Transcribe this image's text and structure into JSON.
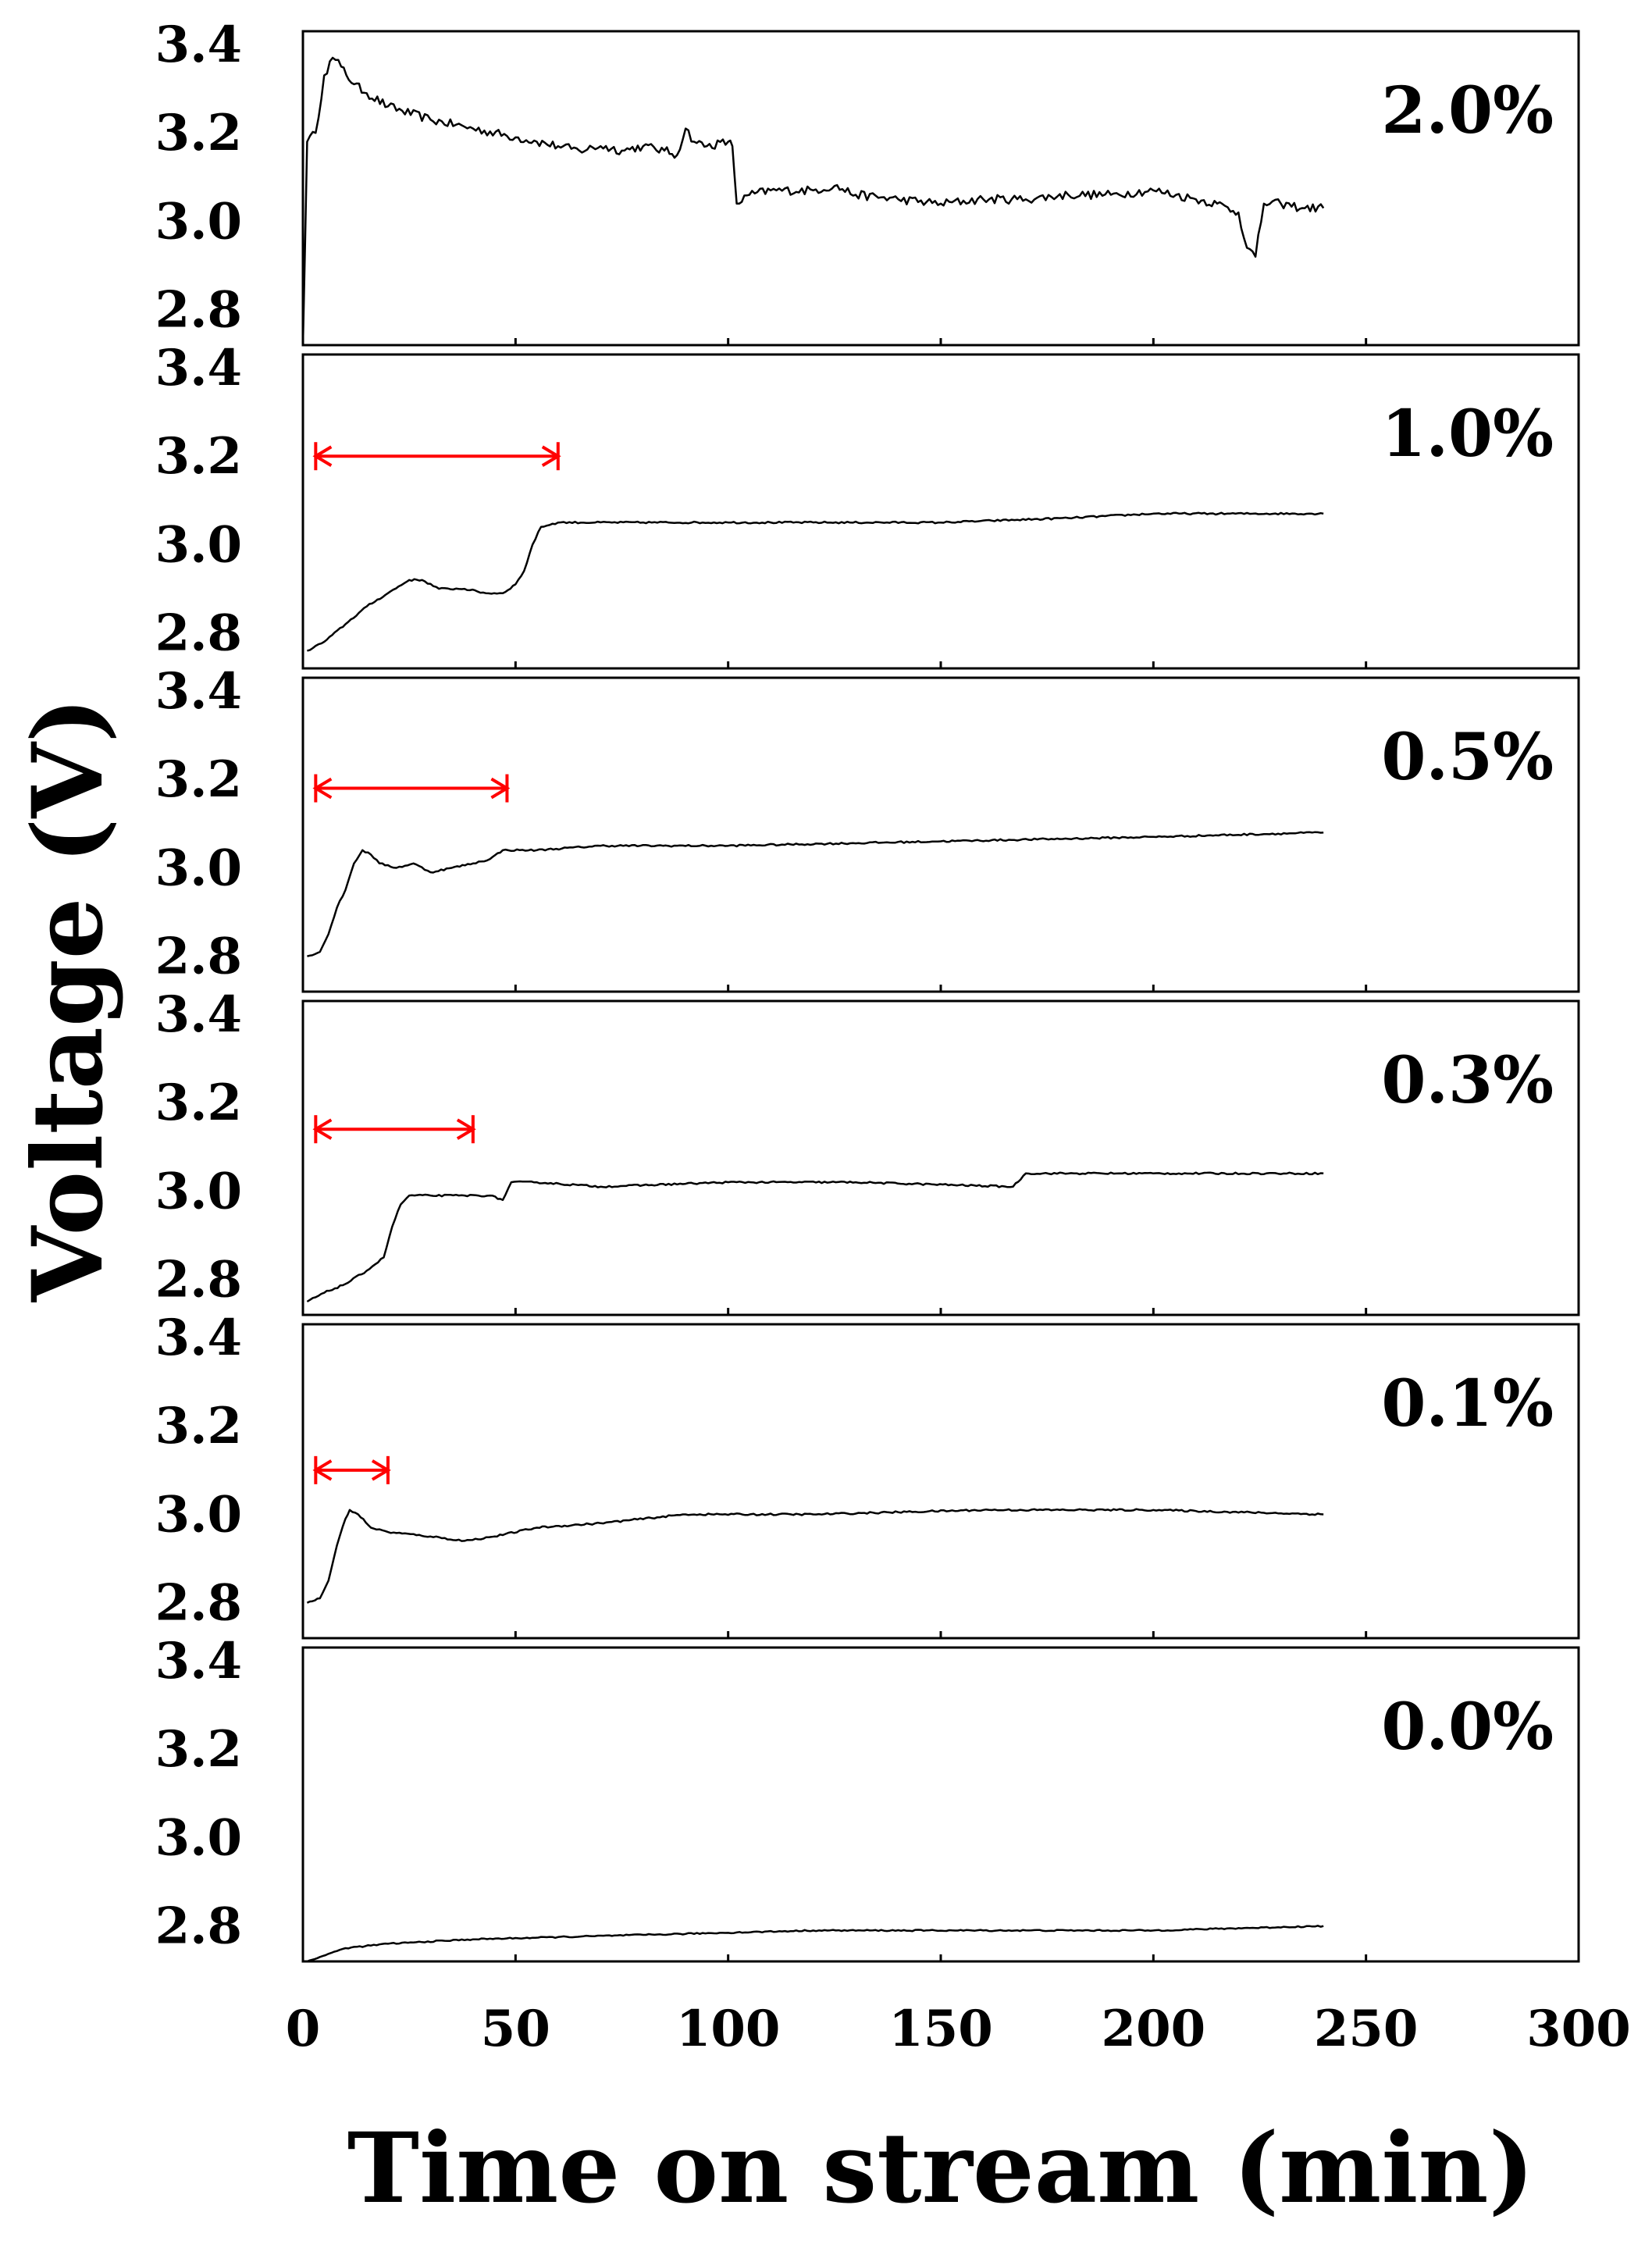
{
  "chart_data": {
    "type": "line",
    "xlabel": "Time on stream (min)",
    "ylabel": "Voltage (V)",
    "xlim": [
      0,
      300
    ],
    "x_ticks": [
      "0",
      "50",
      "100",
      "150",
      "200",
      "250",
      "300"
    ],
    "ylim": [
      2.72,
      3.43
    ],
    "y_ticks": [
      "2.8",
      "3.0",
      "3.2",
      "3.4"
    ],
    "grid": false,
    "colors": {
      "line": "#000000",
      "arrow": "#ff0000"
    },
    "panels": [
      {
        "label": "2.0%",
        "series": [
          {
            "x": 0,
            "y": 2.72
          },
          {
            "x": 1,
            "y": 3.18
          },
          {
            "x": 3,
            "y": 3.2
          },
          {
            "x": 5,
            "y": 3.33
          },
          {
            "x": 7,
            "y": 3.37
          },
          {
            "x": 9,
            "y": 3.35
          },
          {
            "x": 12,
            "y": 3.31
          },
          {
            "x": 15,
            "y": 3.29
          },
          {
            "x": 20,
            "y": 3.26
          },
          {
            "x": 30,
            "y": 3.23
          },
          {
            "x": 40,
            "y": 3.21
          },
          {
            "x": 50,
            "y": 3.19
          },
          {
            "x": 55,
            "y": 3.18
          },
          {
            "x": 60,
            "y": 3.17
          },
          {
            "x": 65,
            "y": 3.16
          },
          {
            "x": 70,
            "y": 3.17
          },
          {
            "x": 75,
            "y": 3.16
          },
          {
            "x": 80,
            "y": 3.17
          },
          {
            "x": 85,
            "y": 3.16
          },
          {
            "x": 88,
            "y": 3.15
          },
          {
            "x": 90,
            "y": 3.21
          },
          {
            "x": 92,
            "y": 3.18
          },
          {
            "x": 95,
            "y": 3.17
          },
          {
            "x": 100,
            "y": 3.18
          },
          {
            "x": 101,
            "y": 3.17
          },
          {
            "x": 102,
            "y": 3.04
          },
          {
            "x": 105,
            "y": 3.06
          },
          {
            "x": 110,
            "y": 3.07
          },
          {
            "x": 120,
            "y": 3.07
          },
          {
            "x": 125,
            "y": 3.08
          },
          {
            "x": 130,
            "y": 3.06
          },
          {
            "x": 140,
            "y": 3.05
          },
          {
            "x": 150,
            "y": 3.04
          },
          {
            "x": 160,
            "y": 3.05
          },
          {
            "x": 170,
            "y": 3.05
          },
          {
            "x": 180,
            "y": 3.06
          },
          {
            "x": 190,
            "y": 3.06
          },
          {
            "x": 200,
            "y": 3.07
          },
          {
            "x": 210,
            "y": 3.05
          },
          {
            "x": 215,
            "y": 3.04
          },
          {
            "x": 220,
            "y": 3.02
          },
          {
            "x": 222,
            "y": 2.94
          },
          {
            "x": 224,
            "y": 2.92
          },
          {
            "x": 226,
            "y": 3.04
          },
          {
            "x": 230,
            "y": 3.04
          },
          {
            "x": 235,
            "y": 3.03
          },
          {
            "x": 240,
            "y": 3.03
          }
        ],
        "noise": 0.02,
        "arrow": null
      },
      {
        "label": "1.0%",
        "series": [
          {
            "x": 1,
            "y": 2.76
          },
          {
            "x": 5,
            "y": 2.78
          },
          {
            "x": 10,
            "y": 2.82
          },
          {
            "x": 15,
            "y": 2.86
          },
          {
            "x": 20,
            "y": 2.89
          },
          {
            "x": 25,
            "y": 2.92
          },
          {
            "x": 28,
            "y": 2.92
          },
          {
            "x": 32,
            "y": 2.9
          },
          {
            "x": 38,
            "y": 2.9
          },
          {
            "x": 43,
            "y": 2.89
          },
          {
            "x": 47,
            "y": 2.89
          },
          {
            "x": 50,
            "y": 2.91
          },
          {
            "x": 52,
            "y": 2.94
          },
          {
            "x": 54,
            "y": 3.0
          },
          {
            "x": 56,
            "y": 3.04
          },
          {
            "x": 60,
            "y": 3.05
          },
          {
            "x": 100,
            "y": 3.05
          },
          {
            "x": 150,
            "y": 3.05
          },
          {
            "x": 180,
            "y": 3.06
          },
          {
            "x": 200,
            "y": 3.07
          },
          {
            "x": 240,
            "y": 3.07
          }
        ],
        "noise": 0.004,
        "arrow": {
          "x_start": 3,
          "x_end": 60,
          "y": 3.2
        }
      },
      {
        "label": "0.5%",
        "series": [
          {
            "x": 1,
            "y": 2.8
          },
          {
            "x": 4,
            "y": 2.81
          },
          {
            "x": 6,
            "y": 2.85
          },
          {
            "x": 8,
            "y": 2.91
          },
          {
            "x": 10,
            "y": 2.95
          },
          {
            "x": 12,
            "y": 3.01
          },
          {
            "x": 14,
            "y": 3.04
          },
          {
            "x": 16,
            "y": 3.03
          },
          {
            "x": 18,
            "y": 3.01
          },
          {
            "x": 22,
            "y": 3.0
          },
          {
            "x": 26,
            "y": 3.01
          },
          {
            "x": 30,
            "y": 2.99
          },
          {
            "x": 35,
            "y": 3.0
          },
          {
            "x": 40,
            "y": 3.01
          },
          {
            "x": 44,
            "y": 3.02
          },
          {
            "x": 47,
            "y": 3.04
          },
          {
            "x": 55,
            "y": 3.04
          },
          {
            "x": 70,
            "y": 3.05
          },
          {
            "x": 100,
            "y": 3.05
          },
          {
            "x": 150,
            "y": 3.06
          },
          {
            "x": 200,
            "y": 3.07
          },
          {
            "x": 240,
            "y": 3.08
          }
        ],
        "noise": 0.004,
        "arrow": {
          "x_start": 3,
          "x_end": 48,
          "y": 3.18
        }
      },
      {
        "label": "0.3%",
        "series": [
          {
            "x": 1,
            "y": 2.75
          },
          {
            "x": 5,
            "y": 2.77
          },
          {
            "x": 10,
            "y": 2.79
          },
          {
            "x": 15,
            "y": 2.82
          },
          {
            "x": 19,
            "y": 2.85
          },
          {
            "x": 21,
            "y": 2.92
          },
          {
            "x": 23,
            "y": 2.97
          },
          {
            "x": 25,
            "y": 2.99
          },
          {
            "x": 30,
            "y": 2.99
          },
          {
            "x": 38,
            "y": 2.99
          },
          {
            "x": 44,
            "y": 2.99
          },
          {
            "x": 47,
            "y": 2.98
          },
          {
            "x": 49,
            "y": 3.02
          },
          {
            "x": 55,
            "y": 3.02
          },
          {
            "x": 70,
            "y": 3.01
          },
          {
            "x": 100,
            "y": 3.02
          },
          {
            "x": 130,
            "y": 3.02
          },
          {
            "x": 167,
            "y": 3.01
          },
          {
            "x": 170,
            "y": 3.04
          },
          {
            "x": 200,
            "y": 3.04
          },
          {
            "x": 240,
            "y": 3.04
          }
        ],
        "noise": 0.004,
        "arrow": {
          "x_start": 3,
          "x_end": 40,
          "y": 3.14
        }
      },
      {
        "label": "0.1%",
        "series": [
          {
            "x": 1,
            "y": 2.8
          },
          {
            "x": 4,
            "y": 2.81
          },
          {
            "x": 6,
            "y": 2.85
          },
          {
            "x": 8,
            "y": 2.93
          },
          {
            "x": 10,
            "y": 2.99
          },
          {
            "x": 11,
            "y": 3.01
          },
          {
            "x": 13,
            "y": 3.0
          },
          {
            "x": 16,
            "y": 2.97
          },
          {
            "x": 20,
            "y": 2.96
          },
          {
            "x": 30,
            "y": 2.95
          },
          {
            "x": 38,
            "y": 2.94
          },
          {
            "x": 45,
            "y": 2.95
          },
          {
            "x": 55,
            "y": 2.97
          },
          {
            "x": 70,
            "y": 2.98
          },
          {
            "x": 90,
            "y": 3.0
          },
          {
            "x": 120,
            "y": 3.0
          },
          {
            "x": 160,
            "y": 3.01
          },
          {
            "x": 200,
            "y": 3.01
          },
          {
            "x": 240,
            "y": 3.0
          }
        ],
        "noise": 0.004,
        "arrow": {
          "x_start": 3,
          "x_end": 20,
          "y": 3.1
        }
      },
      {
        "label": "0.0%",
        "series": [
          {
            "x": 1,
            "y": 2.72
          },
          {
            "x": 4,
            "y": 2.73
          },
          {
            "x": 10,
            "y": 2.75
          },
          {
            "x": 20,
            "y": 2.76
          },
          {
            "x": 40,
            "y": 2.77
          },
          {
            "x": 80,
            "y": 2.78
          },
          {
            "x": 120,
            "y": 2.79
          },
          {
            "x": 160,
            "y": 2.79
          },
          {
            "x": 200,
            "y": 2.79
          },
          {
            "x": 240,
            "y": 2.8
          }
        ],
        "noise": 0.003,
        "arrow": null
      }
    ]
  }
}
